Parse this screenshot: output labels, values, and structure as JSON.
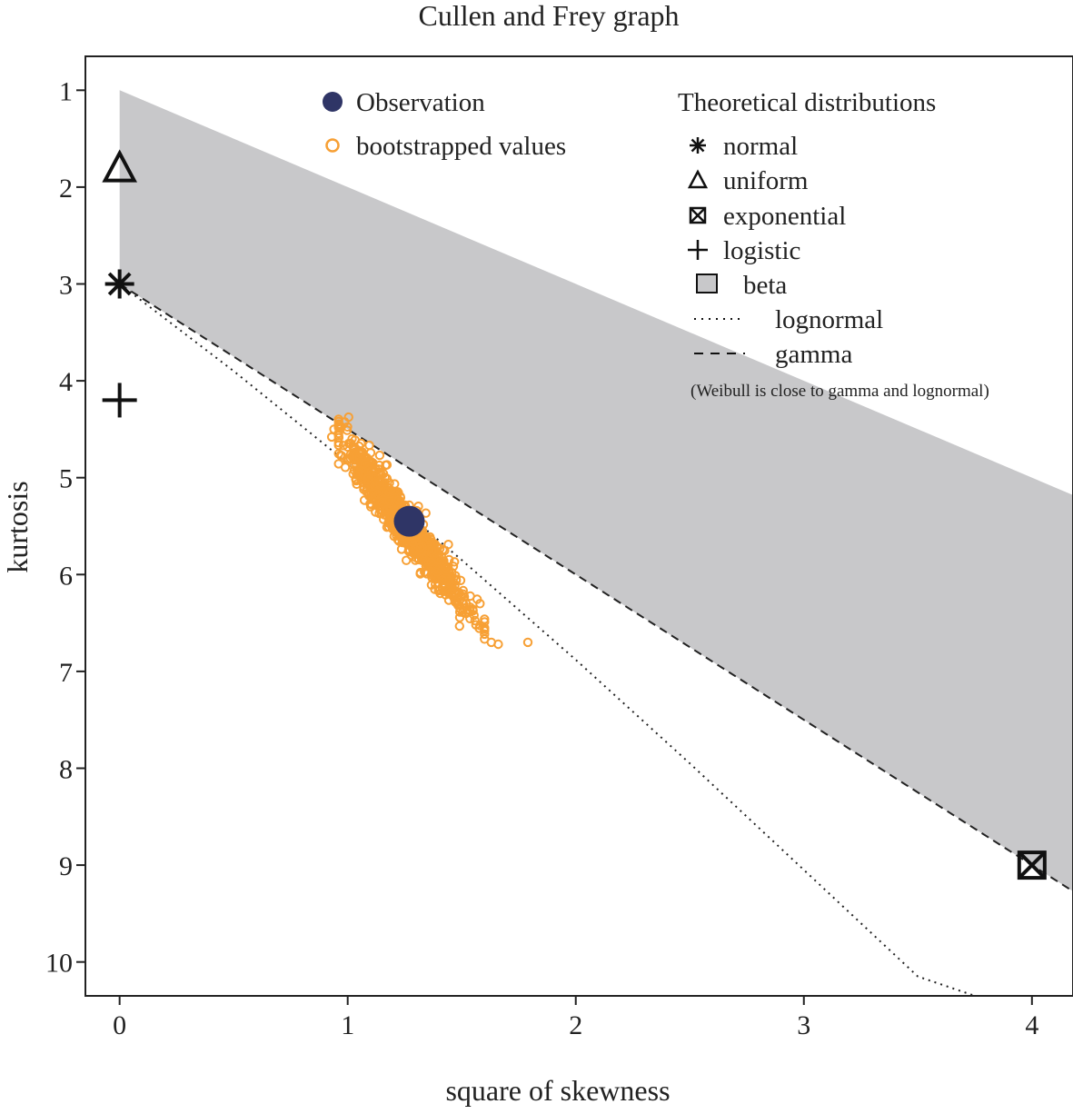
{
  "chart_data": {
    "type": "scatter",
    "title": "Cullen and Frey graph",
    "xlabel": "square of skewness",
    "ylabel": "kurtosis",
    "xlim": [
      -0.15,
      4.18
    ],
    "ylim": [
      0.65,
      10.35
    ],
    "y_inverted": true,
    "xticks": [
      "0",
      "1",
      "2",
      "3",
      "4"
    ],
    "yticks": [
      "1",
      "2",
      "3",
      "4",
      "5",
      "6",
      "7",
      "8",
      "9",
      "10"
    ],
    "observation": {
      "name": "Observation",
      "x": 1.27,
      "y": 5.45,
      "color": "#2f3566"
    },
    "bootstrap": {
      "name": "bootstrapped values",
      "color": "#f7a035",
      "cloud": {
        "x_mean": 1.25,
        "x_sd": 0.13,
        "slope": 3.1,
        "y_at_mean": 5.48,
        "y_sd": 0.12,
        "n": 1000
      },
      "outliers": [
        [
          0.96,
          4.42
        ],
        [
          0.94,
          4.5
        ],
        [
          0.93,
          4.58
        ],
        [
          1.58,
          6.3
        ],
        [
          1.6,
          6.55
        ],
        [
          1.63,
          6.7
        ],
        [
          1.66,
          6.72
        ],
        [
          1.79,
          6.7
        ],
        [
          1.47,
          6.28
        ],
        [
          1.52,
          6.4
        ]
      ]
    },
    "theoretical": {
      "normal": {
        "x": 0,
        "y": 3,
        "marker": "asterisk"
      },
      "uniform": {
        "x": 0,
        "y": 1.8,
        "marker": "triangle"
      },
      "exponential": {
        "x": 4,
        "y": 9,
        "marker": "boxed-x"
      },
      "logistic": {
        "x": 0,
        "y": 4.2,
        "marker": "plus"
      }
    },
    "beta_region": {
      "upper": "kurtosis = skewness^2 + 1",
      "lower": "kurtosis = 1.5*skewness^2 + 3",
      "color": "#c8c8ca"
    },
    "lognormal_line": {
      "points": [
        [
          0,
          3
        ],
        [
          0.5,
          3.9
        ],
        [
          1,
          4.85
        ],
        [
          1.5,
          5.85
        ],
        [
          2,
          6.88
        ],
        [
          2.5,
          7.95
        ],
        [
          3,
          9.05
        ],
        [
          3.5,
          10.15
        ],
        [
          3.75,
          10.35
        ]
      ]
    },
    "gamma_line": {
      "equation": "kurtosis = 1.5*skewness^2 + 3"
    }
  },
  "legend_left": {
    "observation_label": "Observation",
    "bootstrap_label": "bootstrapped values"
  },
  "legend_right": {
    "heading": "Theoretical distributions",
    "normal": "normal",
    "uniform": "uniform",
    "exponential": "exponential",
    "logistic": "logistic",
    "beta": "beta",
    "lognormal": "lognormal",
    "gamma": "gamma",
    "note": "(Weibull is close to gamma and lognormal)"
  }
}
